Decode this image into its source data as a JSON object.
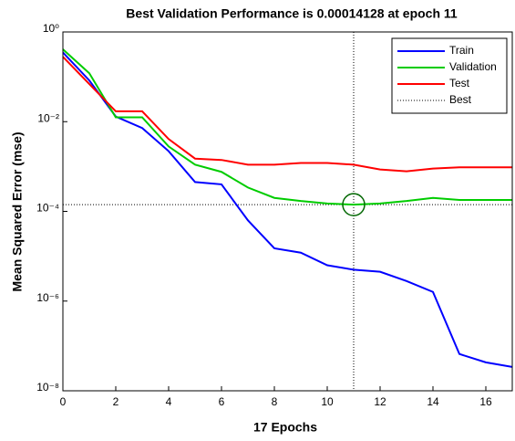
{
  "chart_data": {
    "type": "line",
    "title": "Best Validation Performance is 0.00014128 at epoch 11",
    "x_label": "17 Epochs",
    "y_label": "Mean Squared Error  (mse)",
    "x": [
      0,
      1,
      2,
      3,
      4,
      5,
      6,
      7,
      8,
      9,
      10,
      11,
      12,
      13,
      14,
      15,
      16,
      17
    ],
    "series": [
      {
        "name": "Train",
        "color": "#0000ff",
        "values": [
          0.35,
          0.083,
          0.013,
          0.0072,
          0.0022,
          0.00045,
          0.0004,
          6.3e-05,
          1.5e-05,
          1.2e-05,
          6.3e-06,
          5e-06,
          4.5e-06,
          2.8e-06,
          1.6e-06,
          6.6e-08,
          4.3e-08,
          3.4e-08
        ]
      },
      {
        "name": "Validation",
        "color": "#00cc00",
        "values": [
          0.41,
          0.12,
          0.0125,
          0.0125,
          0.0028,
          0.0011,
          0.00076,
          0.00034,
          0.0002,
          0.00017,
          0.00015,
          0.00014128,
          0.00015,
          0.00017,
          0.0002,
          0.00018,
          0.00018,
          0.00018
        ]
      },
      {
        "name": "Test",
        "color": "#ff0000",
        "values": [
          0.28,
          0.069,
          0.017,
          0.017,
          0.0041,
          0.0015,
          0.0014,
          0.0011,
          0.0011,
          0.0012,
          0.0012,
          0.0011,
          0.00086,
          0.00078,
          0.0009,
          0.00096,
          0.00096,
          0.00096
        ]
      }
    ],
    "best": {
      "name": "Best",
      "epoch": 11,
      "value": 0.00014128,
      "color": "#000000"
    },
    "xlim": [
      0,
      17
    ],
    "xticks": [
      0,
      2,
      4,
      6,
      8,
      10,
      12,
      14,
      16
    ],
    "ylim": [
      1e-08,
      1
    ],
    "yticks": [
      {
        "value": 1,
        "label": "10⁰"
      },
      {
        "value": 0.01,
        "label": "10⁻²"
      },
      {
        "value": 0.0001,
        "label": "10⁻⁴"
      },
      {
        "value": 1e-06,
        "label": "10⁻⁶"
      },
      {
        "value": 1e-08,
        "label": "10⁻⁸"
      }
    ],
    "log_y": true,
    "legend": "upper right"
  }
}
